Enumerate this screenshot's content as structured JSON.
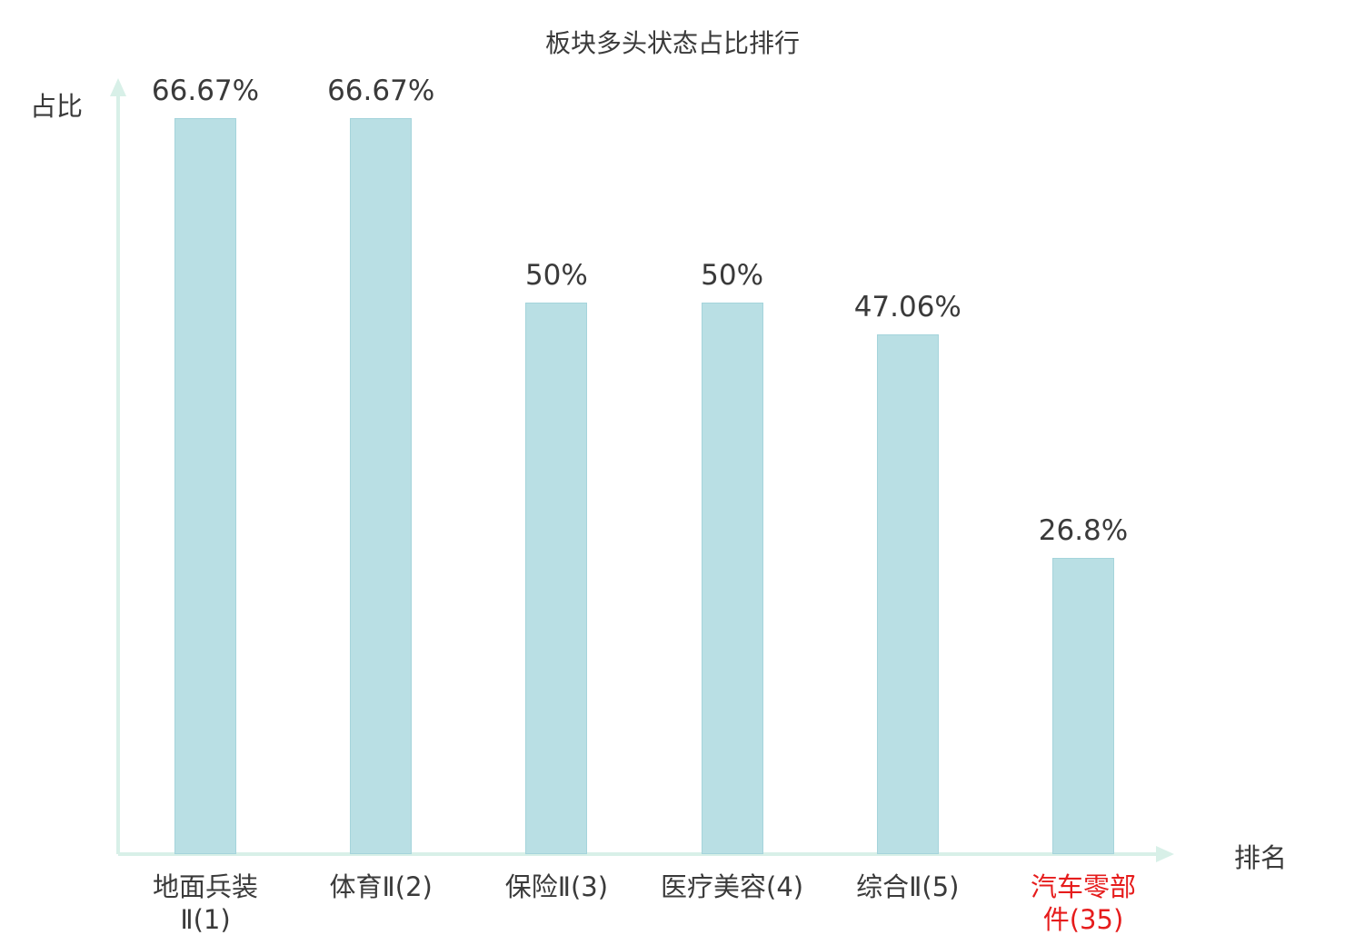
{
  "title": "板块多头状态占比排行",
  "y_axis_label": "占比",
  "x_axis_label": "排名",
  "colors": {
    "bar_fill": "#b9dfe4",
    "bar_border": "#a5d4db",
    "axis": "#d8f0e8",
    "text": "#3a3a3a",
    "highlight": "#e61c1c"
  },
  "chart_data": {
    "type": "bar",
    "title": "板块多头状态占比排行",
    "xlabel": "排名",
    "ylabel": "占比",
    "categories": [
      "地面兵装\nⅡ(1)",
      "体育Ⅱ(2)",
      "保险Ⅱ(3)",
      "医疗美容(4)",
      "综合Ⅱ(5)",
      "汽车零部\n件(35)"
    ],
    "values": [
      66.67,
      66.67,
      50,
      50,
      47.06,
      26.8
    ],
    "value_labels": [
      "66.67%",
      "66.67%",
      "50%",
      "50%",
      "47.06%",
      "26.8%"
    ],
    "highlighted_category_index": 5,
    "ylim": [
      0,
      70
    ],
    "grid": false,
    "legend": "none"
  }
}
